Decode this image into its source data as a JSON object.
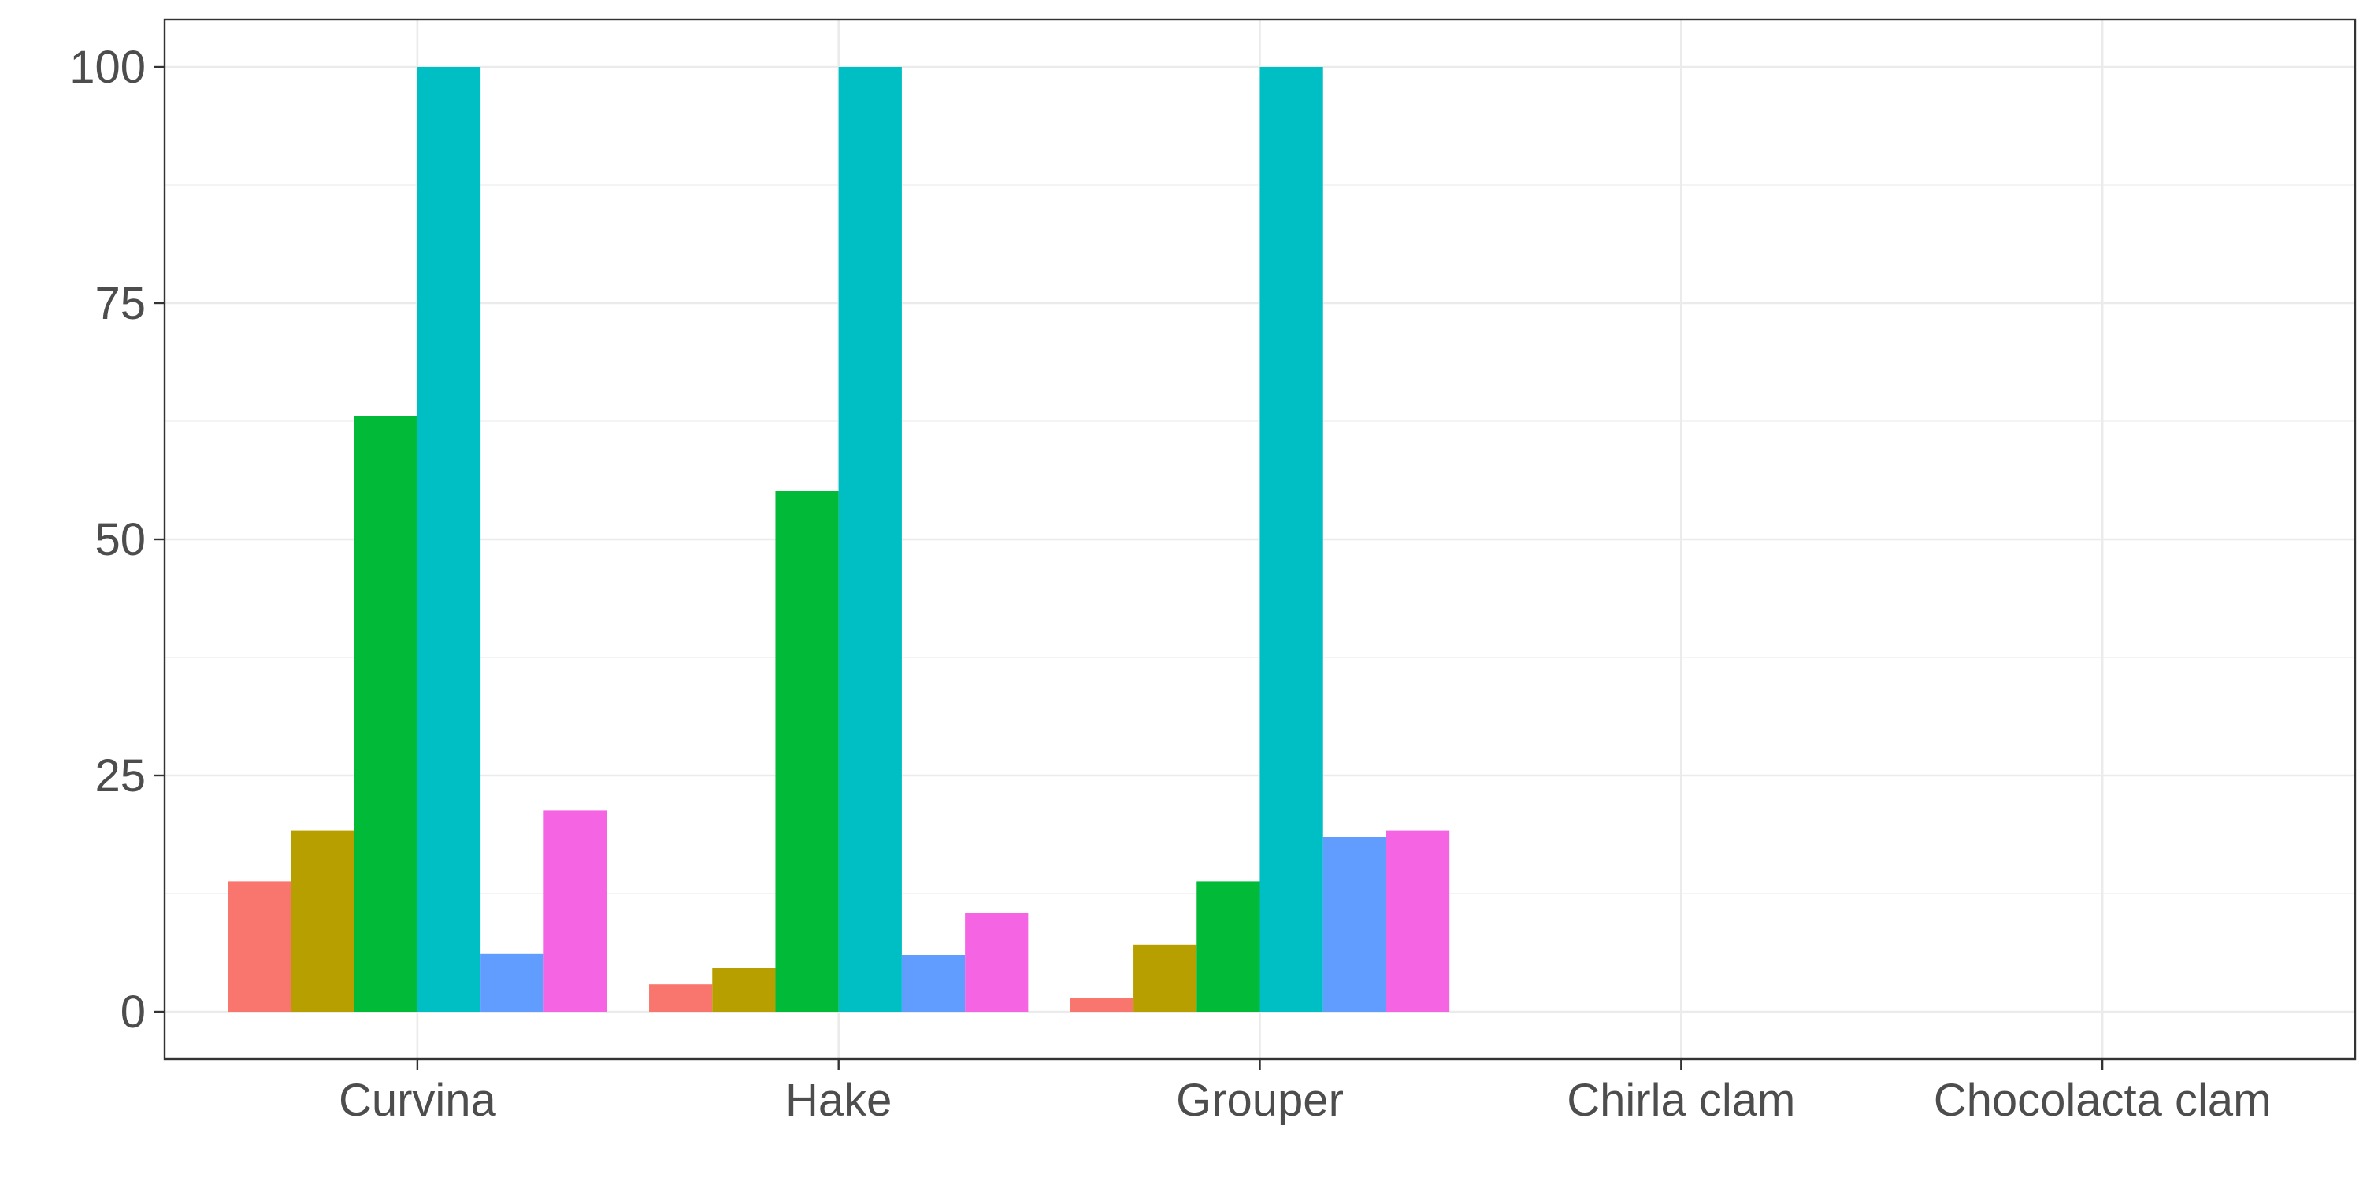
{
  "chart_data": {
    "type": "bar",
    "title": "",
    "xlabel": "",
    "ylabel": "",
    "categories": [
      "Curvina",
      "Hake",
      "Grouper",
      "Chirla clam",
      "Chocolacta clam"
    ],
    "ylim": [
      -5,
      105
    ],
    "yticks": [
      0,
      25,
      50,
      75,
      100
    ],
    "grid": true,
    "legend": "none",
    "series": [
      {
        "color": "#F8766D",
        "values": [
          13.8,
          2.9,
          1.5,
          null,
          null
        ]
      },
      {
        "color": "#B79F00",
        "values": [
          19.2,
          4.6,
          7.1,
          null,
          null
        ]
      },
      {
        "color": "#00BA38",
        "values": [
          63.0,
          55.1,
          13.8,
          null,
          null
        ]
      },
      {
        "color": "#00BFC4",
        "values": [
          100,
          100,
          100,
          null,
          null
        ]
      },
      {
        "color": "#619CFF",
        "values": [
          6.1,
          6.0,
          18.5,
          null,
          null
        ]
      },
      {
        "color": "#F564E3",
        "values": [
          21.3,
          10.5,
          19.2,
          null,
          null
        ]
      }
    ]
  }
}
